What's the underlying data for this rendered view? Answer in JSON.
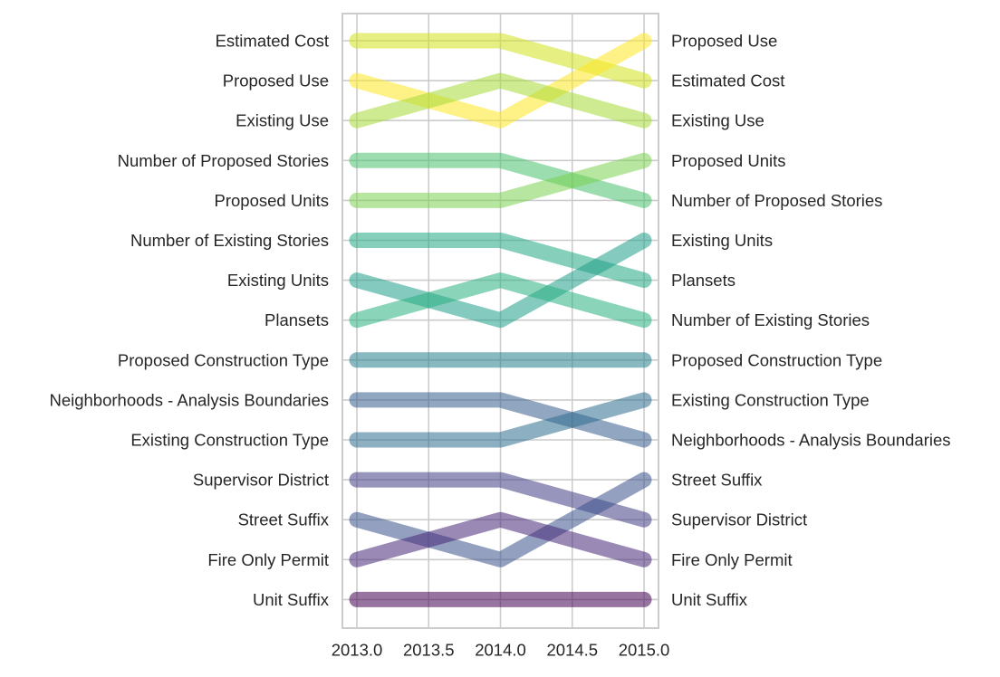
{
  "chart_data": {
    "type": "bump",
    "x": [
      2013.0,
      2014.0,
      2015.0
    ],
    "x_ticks": [
      2013.0,
      2013.5,
      2014.0,
      2014.5,
      2015.0
    ],
    "x_tick_labels": [
      "2013.0",
      "2013.5",
      "2014.0",
      "2014.5",
      "2015.0"
    ],
    "xlim": [
      2012.9,
      2015.1
    ],
    "rank_count": 15,
    "grid": true,
    "title": "",
    "xlabel": "",
    "ylabel": "",
    "left_labels": [
      "Estimated Cost",
      "Proposed Use",
      "Existing Use",
      "Number of Proposed Stories",
      "Proposed Units",
      "Number of Existing Stories",
      "Existing Units",
      "Plansets",
      "Proposed Construction Type",
      "Neighborhoods - Analysis Boundaries",
      "Existing Construction Type",
      "Supervisor District",
      "Street Suffix",
      "Fire Only Permit",
      "Unit Suffix"
    ],
    "right_labels": [
      "Proposed Use",
      "Estimated Cost",
      "Existing Use",
      "Proposed Units",
      "Number of Proposed Stories",
      "Existing Units",
      "Plansets",
      "Number of Existing Stories",
      "Proposed Construction Type",
      "Existing Construction Type",
      "Neighborhoods - Analysis Boundaries",
      "Street Suffix",
      "Supervisor District",
      "Fire Only Permit",
      "Unit Suffix"
    ],
    "series": [
      {
        "name": "Estimated Cost",
        "ranks": [
          1,
          1,
          2
        ],
        "color": "#d2e21b"
      },
      {
        "name": "Proposed Use",
        "ranks": [
          2,
          3,
          1
        ],
        "color": "#fde725"
      },
      {
        "name": "Existing Use",
        "ranks": [
          3,
          2,
          3
        ],
        "color": "#a5db36"
      },
      {
        "name": "Number of Proposed Stories",
        "ranks": [
          4,
          4,
          5
        ],
        "color": "#4ac16d"
      },
      {
        "name": "Proposed Units",
        "ranks": [
          5,
          5,
          4
        ],
        "color": "#7ad151"
      },
      {
        "name": "Number of Existing Stories",
        "ranks": [
          6,
          6,
          7
        ],
        "color": "#22a884"
      },
      {
        "name": "Existing Units",
        "ranks": [
          7,
          8,
          6
        ],
        "color": "#1f9e89"
      },
      {
        "name": "Plansets",
        "ranks": [
          8,
          7,
          8
        ],
        "color": "#2ab07f"
      },
      {
        "name": "Proposed Construction Type",
        "ranks": [
          9,
          9,
          9
        ],
        "color": "#277f8e"
      },
      {
        "name": "Neighborhoods - Analysis Boundaries",
        "ranks": [
          10,
          10,
          11
        ],
        "color": "#365c8d"
      },
      {
        "name": "Existing Construction Type",
        "ranks": [
          11,
          11,
          10
        ],
        "color": "#2e6e8e"
      },
      {
        "name": "Supervisor District",
        "ranks": [
          12,
          12,
          13
        ],
        "color": "#433e85"
      },
      {
        "name": "Street Suffix",
        "ranks": [
          13,
          14,
          12
        ],
        "color": "#3b528b"
      },
      {
        "name": "Fire Only Permit",
        "ranks": [
          14,
          13,
          14
        ],
        "color": "#482878"
      },
      {
        "name": "Unit Suffix",
        "ranks": [
          15,
          15,
          15
        ],
        "color": "#440154"
      }
    ]
  }
}
